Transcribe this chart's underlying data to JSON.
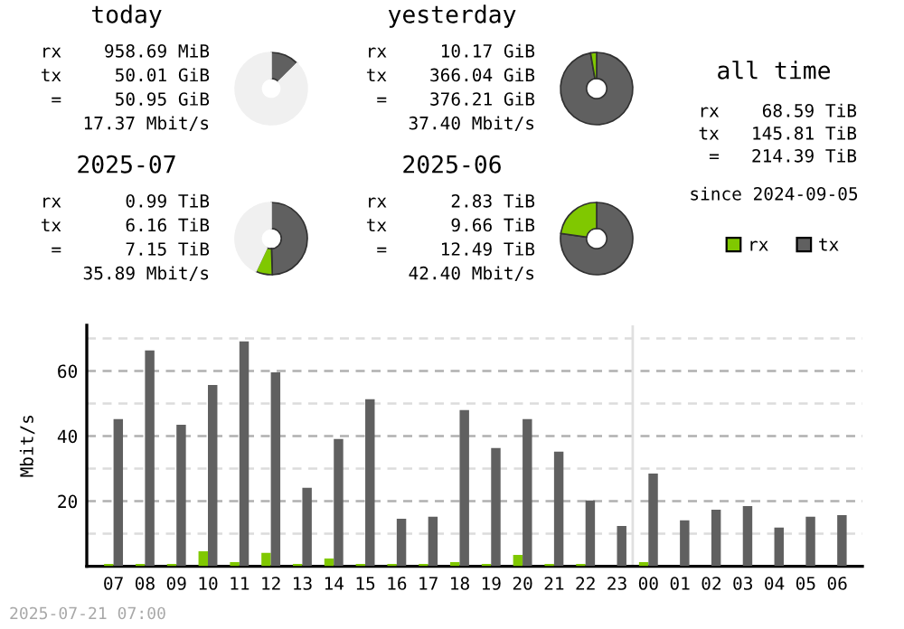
{
  "chart_data": [
    {
      "type": "donut",
      "title": "today",
      "categories": [
        null,
        null,
        null
      ],
      "values": [
        12.6,
        null,
        87.2
      ],
      "colors": [
        "#606060",
        "#80c800",
        "#f0f0f0"
      ],
      "annotations": [
        "rx    958.69 MiB",
        "tx     50.01 GiB",
        " =     50.95 GiB",
        "17.37 Mbit/s"
      ]
    },
    {
      "type": "donut",
      "title": "yesterday",
      "categories": [
        null,
        null
      ],
      "values": [
        97.3,
        2.7
      ],
      "colors": [
        "#606060",
        "#80c800"
      ],
      "annotations": [
        "rx     10.17 GiB",
        "tx    366.04 GiB",
        " =    376.21 GiB",
        "37.40 Mbit/s"
      ]
    },
    {
      "type": "other",
      "title": "all time",
      "annotations": [
        "rx    68.59 TiB",
        "tx   145.81 TiB",
        " =   214.39 TiB",
        "since 2024-09-05"
      ]
    },
    {
      "type": "donut",
      "title": "2025-07",
      "categories": [
        null,
        null,
        null
      ],
      "values": [
        49.5,
        7.5,
        43.0
      ],
      "colors": [
        "#606060",
        "#80c800",
        "#f0f0f0"
      ],
      "annotations": [
        "rx      0.99 TiB",
        "tx      6.16 TiB",
        " =      7.15 TiB",
        "35.89 Mbit/s"
      ]
    },
    {
      "type": "donut",
      "title": "2025-06",
      "categories": [
        null,
        null
      ],
      "values": [
        77.3,
        22.7
      ],
      "colors": [
        "#606060",
        "#80c800"
      ],
      "annotations": [
        "rx      2.83 TiB",
        "tx      9.66 TiB",
        " =     12.49 TiB",
        "42.40 Mbit/s"
      ]
    },
    {
      "type": "bar",
      "ylabel": "Mbit/s",
      "legend": "top right",
      "grid": "y",
      "categories": [
        "07",
        "08",
        "09",
        "10",
        "11",
        "12",
        "13",
        "14",
        "15",
        "16",
        "17",
        "18",
        "19",
        "20",
        "21",
        "22",
        "23",
        "00",
        "01",
        "02",
        "03",
        "04",
        "05",
        "06"
      ],
      "series": [
        {
          "name": "rx",
          "color": "#80c800",
          "values": [
            0.7,
            0.7,
            0.7,
            4.6,
            1.3,
            4.1,
            0.7,
            2.4,
            0.7,
            0.7,
            0.7,
            1.3,
            0.7,
            3.5,
            0.7,
            0.7,
            0,
            1.3,
            0,
            0,
            0,
            0,
            0,
            0
          ]
        },
        {
          "name": "tx",
          "color": "#606060",
          "values": [
            45.2,
            66.3,
            43.5,
            55.7,
            69.1,
            59.6,
            24.1,
            39.1,
            51.3,
            14.6,
            15.2,
            48.0,
            36.3,
            45.2,
            35.2,
            20.2,
            12.4,
            28.5,
            14.1,
            17.4,
            18.5,
            11.9,
            15.2,
            15.7
          ]
        }
      ],
      "ylim": [
        0,
        74
      ],
      "yticks": [
        {
          "value": 10,
          "label": null
        },
        20,
        {
          "value": 30,
          "label": null
        },
        40,
        {
          "value": 50,
          "label": null
        },
        60,
        {
          "value": 70,
          "label": null
        }
      ],
      "ref_lines": [
        {
          "axis": "x",
          "value": "00",
          "color": "#e0e0e0"
        }
      ],
      "annotations": [
        "2025-07-21 07:00"
      ]
    }
  ]
}
